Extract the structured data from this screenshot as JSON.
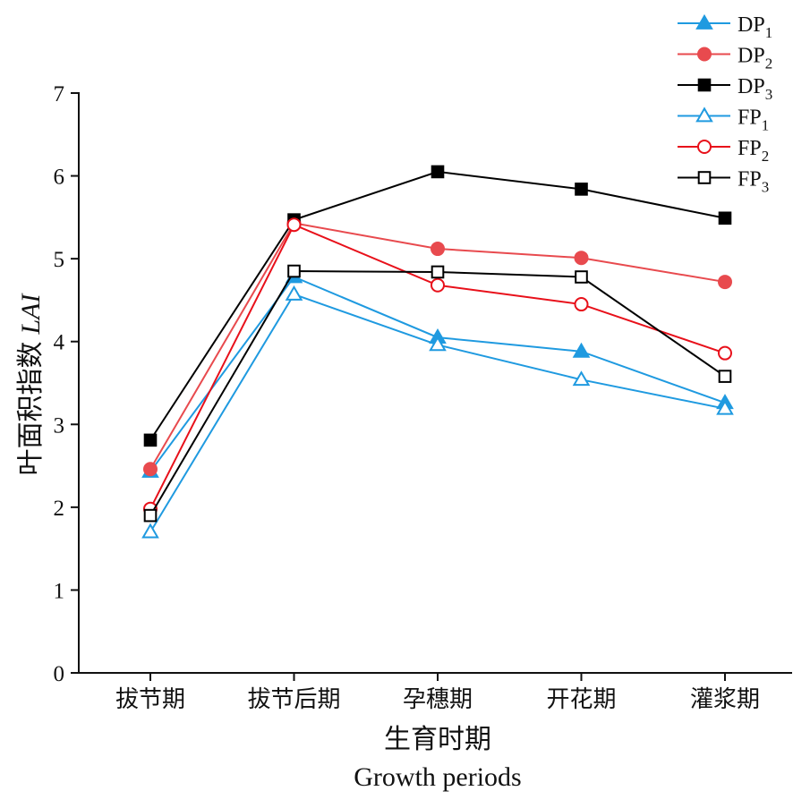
{
  "chart_data": {
    "type": "line",
    "title": "",
    "xlabel_zh": "生育时期",
    "xlabel_en": "Growth periods",
    "ylabel_zh": "叶面积指数",
    "ylabel_var": "LAI",
    "categories": [
      "拔节期",
      "拔节后期",
      "孕穗期",
      "开花期",
      "灌浆期"
    ],
    "ylim": [
      0,
      7
    ],
    "yticks": [
      0,
      1,
      2,
      3,
      4,
      5,
      6,
      7
    ],
    "grid": false,
    "legend_position": "top-right",
    "series": [
      {
        "name": "DP",
        "sub": "1",
        "color": "#1f9ae0",
        "marker": "triangle",
        "filled": true,
        "values": [
          2.43,
          4.78,
          4.05,
          3.88,
          3.26
        ]
      },
      {
        "name": "DP",
        "sub": "2",
        "color": "#e84a4e",
        "marker": "circle",
        "filled": true,
        "values": [
          2.46,
          5.43,
          5.12,
          5.01,
          4.72
        ]
      },
      {
        "name": "DP",
        "sub": "3",
        "color": "#000000",
        "marker": "square",
        "filled": true,
        "values": [
          2.81,
          5.47,
          6.05,
          5.84,
          5.49
        ]
      },
      {
        "name": "FP",
        "sub": "1",
        "color": "#1f9ae0",
        "marker": "triangle",
        "filled": false,
        "values": [
          1.7,
          4.57,
          3.96,
          3.54,
          3.19
        ]
      },
      {
        "name": "FP",
        "sub": "2",
        "color": "#e8101a",
        "marker": "circle",
        "filled": false,
        "values": [
          1.98,
          5.41,
          4.68,
          4.45,
          3.86
        ]
      },
      {
        "name": "FP",
        "sub": "3",
        "color": "#000000",
        "marker": "square",
        "filled": false,
        "values": [
          1.9,
          4.85,
          4.84,
          4.78,
          3.58
        ]
      }
    ]
  }
}
